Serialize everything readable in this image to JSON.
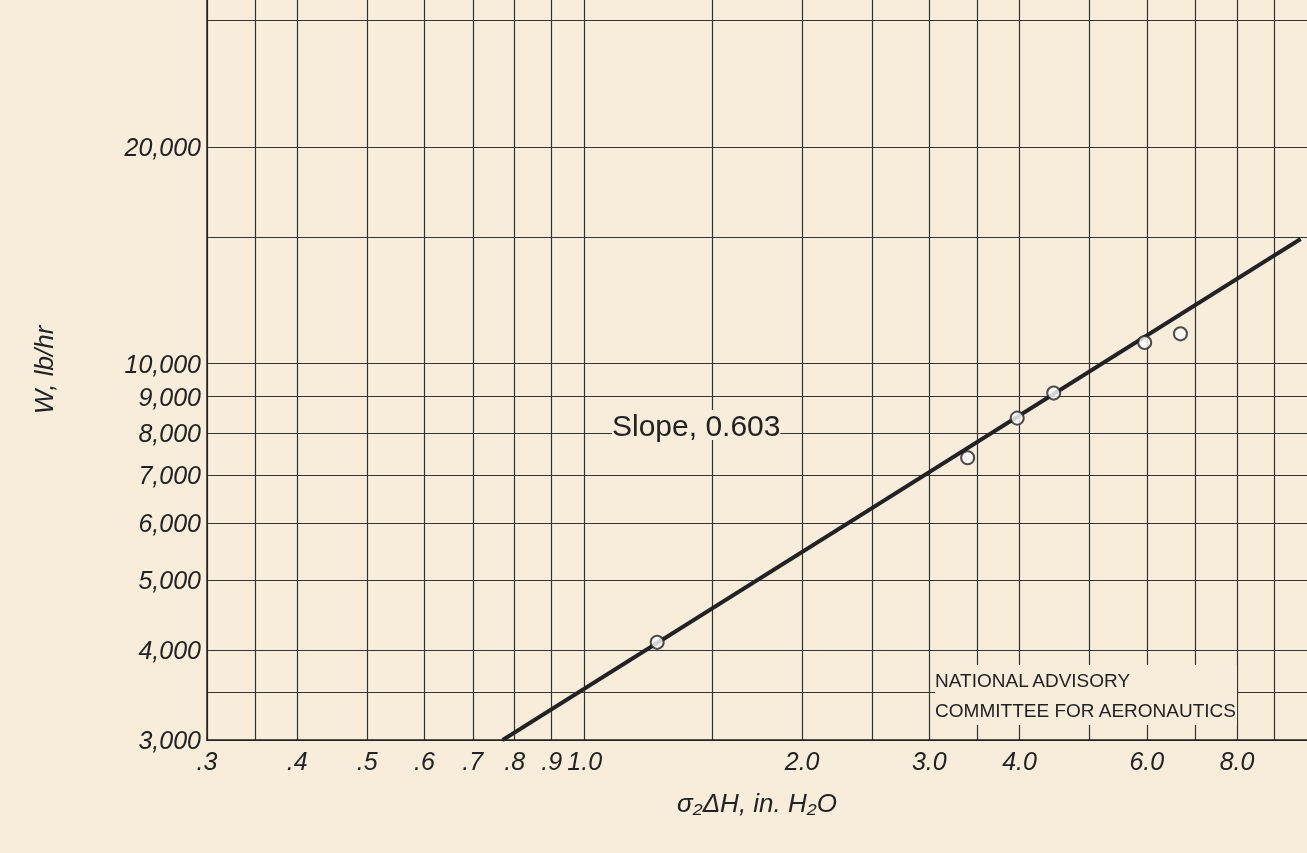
{
  "chart_data": {
    "type": "scatter",
    "xlabel": "σ₂ΔH, in. H₂O",
    "ylabel": "W, lb/hr",
    "log": "xy",
    "grid": true,
    "marker": "circle",
    "xlim": [
      0.3,
      10
    ],
    "ylim": [
      3000,
      32000
    ],
    "xticks": [
      {
        "value": 0.3,
        "label": ".3"
      },
      {
        "value": 0.35,
        "label": null
      },
      {
        "value": 0.4,
        "label": ".4"
      },
      {
        "value": 0.5,
        "label": ".5"
      },
      {
        "value": 0.6,
        "label": ".6"
      },
      {
        "value": 0.7,
        "label": ".7"
      },
      {
        "value": 0.8,
        "label": ".8"
      },
      {
        "value": 0.9,
        "label": ".9"
      },
      {
        "value": 1,
        "label": "1.0"
      },
      {
        "value": 1.5,
        "label": null
      },
      {
        "value": 2,
        "label": "2.0"
      },
      {
        "value": 2.5,
        "label": null
      },
      {
        "value": 3,
        "label": "3.0"
      },
      {
        "value": 3.5,
        "label": null
      },
      {
        "value": 4,
        "label": "4.0"
      },
      {
        "value": 5,
        "label": null
      },
      {
        "value": 6,
        "label": "6.0"
      },
      {
        "value": 7,
        "label": null
      },
      {
        "value": 8,
        "label": "8.0"
      },
      {
        "value": 9,
        "label": null
      }
    ],
    "yticks": [
      {
        "value": 3000,
        "label": "3,000"
      },
      {
        "value": 3500,
        "label": null
      },
      {
        "value": 4000,
        "label": "4,000"
      },
      {
        "value": 5000,
        "label": "5,000"
      },
      {
        "value": 6000,
        "label": "6,000"
      },
      {
        "value": 7000,
        "label": "7,000"
      },
      {
        "value": 8000,
        "label": "8,000"
      },
      {
        "value": 9000,
        "label": "9,000"
      },
      {
        "value": 10000,
        "label": "10,000"
      },
      {
        "value": 15000,
        "label": null
      },
      {
        "value": 20000,
        "label": "20,000"
      },
      {
        "value": 30000,
        "label": null
      }
    ],
    "series": [
      {
        "color": "#222222",
        "x": [
          1.26,
          3.39,
          3.97,
          4.46,
          5.96,
          6.68
        ],
        "values": [
          4100,
          7400,
          8400,
          9100,
          10700,
          11000
        ]
      },
      {
        "type": "line",
        "color": "#222222",
        "marker": "none",
        "x": [
          0.77,
          9.8
        ],
        "values": [
          3000,
          14900
        ]
      }
    ],
    "annotations": [
      "Slope, 0.603",
      "NATIONAL ADVISORY\nCOMMITTEE FOR AERONAUTICS"
    ]
  }
}
